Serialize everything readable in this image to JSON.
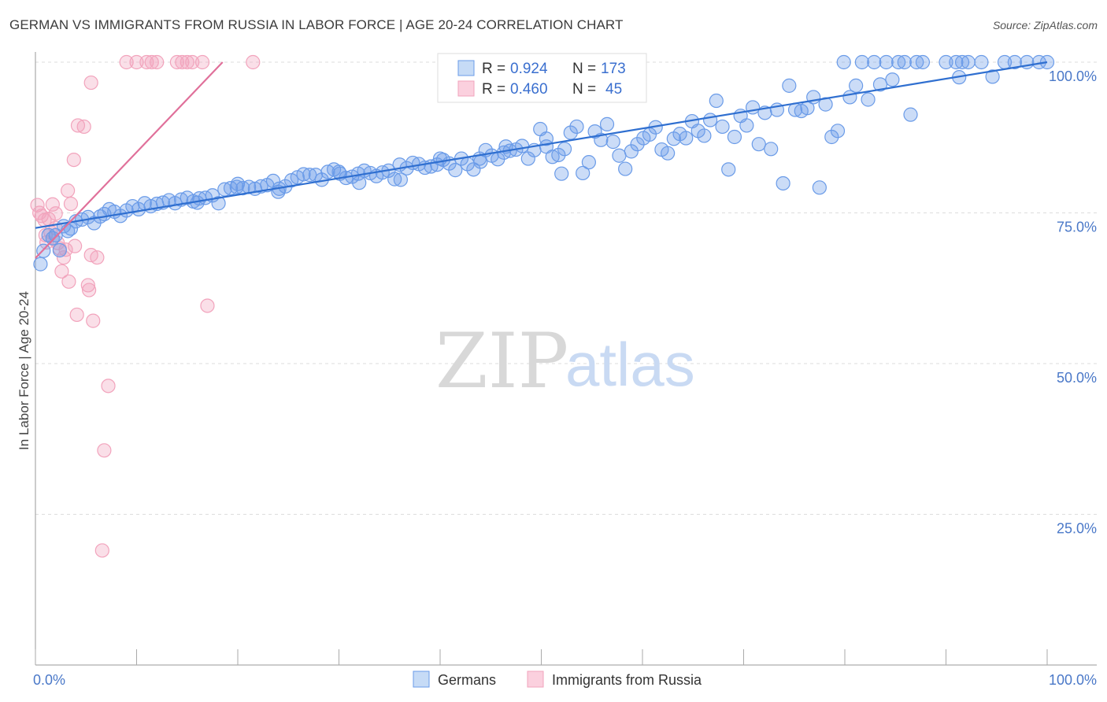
{
  "title": "GERMAN VS IMMIGRANTS FROM RUSSIA IN LABOR FORCE | AGE 20-24 CORRELATION CHART",
  "source": "Source: ZipAtlas.com",
  "watermark": {
    "zip": "ZIP",
    "atlas": "atlas"
  },
  "legend": {
    "germans": {
      "r_label": "R =",
      "r_value": "0.924",
      "n_label": "N =",
      "n_value": "173"
    },
    "russia": {
      "r_label": "R =",
      "r_value": "0.460",
      "n_label": "N =",
      "n_value": "45"
    }
  },
  "bottom_legend": {
    "germans": "Germans",
    "russia": "Immigrants from Russia"
  },
  "colors": {
    "germans": "#6a9be8",
    "germans_line": "#2f6fd0",
    "russia": "#f2a3bc",
    "russia_line": "#e0709a",
    "grid": "#dddddd"
  },
  "chart_data": {
    "type": "scatter",
    "title": "GERMAN VS IMMIGRANTS FROM RUSSIA IN LABOR FORCE | AGE 20-24 CORRELATION CHART",
    "xlabel": "",
    "ylabel": "In Labor Force | Age 20-24",
    "xlim": [
      0,
      100
    ],
    "ylim": [
      0,
      100
    ],
    "x_tick_labels": [
      "0.0%",
      "100.0%"
    ],
    "y_tick_labels": [
      "100.0%",
      "75.0%",
      "50.0%",
      "25.0%"
    ],
    "y_ticks": [
      100,
      75,
      50,
      25
    ],
    "series": [
      {
        "name": "Germans",
        "trend": {
          "x": [
            0,
            100
          ],
          "y": [
            72.5,
            100
          ]
        },
        "points": [
          [
            0.5,
            66.5
          ],
          [
            0.8,
            68.7
          ],
          [
            1.3,
            71.3
          ],
          [
            1.7,
            70.8
          ],
          [
            2.0,
            71.3
          ],
          [
            2.4,
            68.8
          ],
          [
            2.8,
            72.8
          ],
          [
            3.2,
            72.0
          ],
          [
            3.5,
            72.4
          ],
          [
            4.0,
            73.6
          ],
          [
            4.6,
            73.9
          ],
          [
            5.2,
            74.3
          ],
          [
            5.8,
            73.3
          ],
          [
            6.4,
            74.4
          ],
          [
            6.8,
            74.8
          ],
          [
            7.3,
            75.6
          ],
          [
            7.8,
            75.2
          ],
          [
            8.4,
            74.5
          ],
          [
            9.0,
            75.4
          ],
          [
            9.6,
            76.1
          ],
          [
            10.2,
            75.6
          ],
          [
            10.8,
            76.6
          ],
          [
            11.4,
            76.1
          ],
          [
            12.0,
            76.5
          ],
          [
            12.6,
            76.7
          ],
          [
            13.2,
            77.1
          ],
          [
            13.8,
            76.6
          ],
          [
            14.4,
            77.2
          ],
          [
            15.0,
            77.5
          ],
          [
            15.6,
            76.9
          ],
          [
            16.2,
            77.4
          ],
          [
            16.8,
            77.5
          ],
          [
            17.5,
            77.9
          ],
          [
            18.1,
            76.6
          ],
          [
            18.7,
            78.9
          ],
          [
            19.3,
            79.1
          ],
          [
            19.9,
            79.3
          ],
          [
            20.5,
            79.1
          ],
          [
            21.1,
            79.3
          ],
          [
            21.7,
            79.0
          ],
          [
            22.3,
            79.4
          ],
          [
            22.9,
            79.6
          ],
          [
            23.5,
            80.3
          ],
          [
            24.1,
            79.0
          ],
          [
            24.7,
            79.4
          ],
          [
            25.3,
            80.4
          ],
          [
            25.9,
            80.9
          ],
          [
            26.5,
            81.4
          ],
          [
            27.1,
            81.3
          ],
          [
            27.7,
            81.3
          ],
          [
            28.3,
            80.5
          ],
          [
            28.9,
            81.8
          ],
          [
            29.5,
            82.2
          ],
          [
            30.1,
            81.5
          ],
          [
            30.7,
            80.8
          ],
          [
            31.3,
            81.0
          ],
          [
            31.9,
            81.5
          ],
          [
            32.5,
            82.0
          ],
          [
            33.1,
            81.6
          ],
          [
            33.7,
            81.1
          ],
          [
            34.3,
            81.7
          ],
          [
            34.9,
            82.0
          ],
          [
            35.5,
            80.6
          ],
          [
            36.1,
            80.5
          ],
          [
            36.7,
            82.4
          ],
          [
            37.3,
            83.3
          ],
          [
            37.9,
            83.1
          ],
          [
            38.5,
            82.5
          ],
          [
            39.1,
            82.7
          ],
          [
            39.7,
            83.0
          ],
          [
            40.3,
            83.8
          ],
          [
            40.9,
            83.2
          ],
          [
            41.5,
            82.1
          ],
          [
            42.1,
            84.0
          ],
          [
            42.7,
            83.1
          ],
          [
            43.3,
            82.2
          ],
          [
            43.9,
            84.0
          ],
          [
            44.5,
            85.4
          ],
          [
            45.1,
            84.5
          ],
          [
            45.7,
            83.9
          ],
          [
            46.3,
            85.0
          ],
          [
            46.9,
            85.3
          ],
          [
            47.5,
            85.5
          ],
          [
            48.1,
            86.1
          ],
          [
            48.7,
            84.0
          ],
          [
            49.3,
            85.4
          ],
          [
            49.9,
            88.9
          ],
          [
            50.5,
            87.3
          ],
          [
            51.1,
            84.3
          ],
          [
            51.7,
            84.6
          ],
          [
            52.3,
            85.6
          ],
          [
            52.9,
            88.3
          ],
          [
            53.5,
            89.3
          ],
          [
            54.1,
            81.6
          ],
          [
            54.7,
            83.4
          ],
          [
            55.3,
            88.5
          ],
          [
            55.9,
            87.1
          ],
          [
            56.5,
            89.7
          ],
          [
            57.1,
            86.8
          ],
          [
            57.7,
            84.5
          ],
          [
            58.3,
            82.3
          ],
          [
            58.9,
            85.2
          ],
          [
            59.5,
            86.4
          ],
          [
            60.1,
            87.4
          ],
          [
            60.7,
            88.0
          ],
          [
            61.3,
            89.2
          ],
          [
            61.9,
            85.5
          ],
          [
            62.5,
            84.9
          ],
          [
            63.1,
            87.3
          ],
          [
            63.7,
            88.1
          ],
          [
            64.3,
            87.4
          ],
          [
            64.9,
            90.2
          ],
          [
            65.5,
            88.6
          ],
          [
            66.1,
            87.8
          ],
          [
            66.7,
            90.4
          ],
          [
            67.3,
            93.6
          ],
          [
            67.9,
            89.3
          ],
          [
            68.5,
            82.2
          ],
          [
            69.1,
            87.6
          ],
          [
            69.7,
            91.1
          ],
          [
            70.3,
            89.5
          ],
          [
            70.9,
            92.5
          ],
          [
            71.5,
            86.4
          ],
          [
            72.1,
            91.6
          ],
          [
            72.7,
            85.6
          ],
          [
            73.3,
            92.1
          ],
          [
            73.9,
            79.9
          ],
          [
            74.5,
            96.1
          ],
          [
            75.1,
            92.1
          ],
          [
            75.7,
            91.9
          ],
          [
            76.3,
            92.4
          ],
          [
            76.9,
            94.2
          ],
          [
            77.5,
            79.2
          ],
          [
            78.1,
            93.0
          ],
          [
            78.7,
            87.6
          ],
          [
            79.3,
            88.6
          ],
          [
            79.9,
            100
          ],
          [
            80.5,
            94.2
          ],
          [
            81.1,
            96.1
          ],
          [
            81.7,
            100
          ],
          [
            82.3,
            93.8
          ],
          [
            82.9,
            100
          ],
          [
            83.5,
            96.3
          ],
          [
            84.1,
            100
          ],
          [
            84.7,
            97.1
          ],
          [
            85.3,
            100
          ],
          [
            85.9,
            100
          ],
          [
            86.5,
            91.3
          ],
          [
            87.1,
            100
          ],
          [
            87.7,
            100
          ],
          [
            90.0,
            100
          ],
          [
            91.0,
            100
          ],
          [
            91.6,
            100
          ],
          [
            91.3,
            97.5
          ],
          [
            92.2,
            100
          ],
          [
            93.5,
            100
          ],
          [
            94.6,
            97.6
          ],
          [
            95.8,
            100
          ],
          [
            96.8,
            100
          ],
          [
            98.0,
            100
          ],
          [
            99.2,
            100
          ],
          [
            100.0,
            100
          ],
          [
            50.5,
            86.0
          ],
          [
            52.0,
            81.5
          ],
          [
            36.0,
            83.0
          ],
          [
            40.0,
            84.0
          ],
          [
            44.0,
            83.5
          ],
          [
            46.5,
            86.0
          ],
          [
            30.0,
            81.8
          ],
          [
            32.0,
            80.0
          ],
          [
            24.0,
            78.5
          ],
          [
            20.0,
            79.8
          ],
          [
            16.0,
            76.7
          ]
        ]
      },
      {
        "name": "Immigrants from Russia",
        "trend": {
          "x": [
            0,
            18.5
          ],
          "y": [
            67.5,
            100
          ]
        },
        "points": [
          [
            0.2,
            76.3
          ],
          [
            0.4,
            75.0
          ],
          [
            0.6,
            74.5
          ],
          [
            0.9,
            73.8
          ],
          [
            1.1,
            70.1
          ],
          [
            1.3,
            74.0
          ],
          [
            1.5,
            71.8
          ],
          [
            1.7,
            76.4
          ],
          [
            2.0,
            72.5
          ],
          [
            2.2,
            70.0
          ],
          [
            2.4,
            69.1
          ],
          [
            2.6,
            65.3
          ],
          [
            2.8,
            67.6
          ],
          [
            3.0,
            68.9
          ],
          [
            3.2,
            78.7
          ],
          [
            3.5,
            76.5
          ],
          [
            3.8,
            83.8
          ],
          [
            3.9,
            69.5
          ],
          [
            4.2,
            89.5
          ],
          [
            4.8,
            89.3
          ],
          [
            5.2,
            63.0
          ],
          [
            5.3,
            62.2
          ],
          [
            5.5,
            96.6
          ],
          [
            5.7,
            57.1
          ],
          [
            6.1,
            67.6
          ],
          [
            7.2,
            46.3
          ],
          [
            6.8,
            35.6
          ],
          [
            6.6,
            19.0
          ],
          [
            9.0,
            100
          ],
          [
            10.0,
            100
          ],
          [
            11.0,
            100
          ],
          [
            11.5,
            100
          ],
          [
            12.0,
            100
          ],
          [
            14.0,
            100
          ],
          [
            14.5,
            100
          ],
          [
            15.0,
            100
          ],
          [
            15.5,
            100
          ],
          [
            16.5,
            100
          ],
          [
            17.0,
            59.6
          ],
          [
            21.5,
            100
          ],
          [
            1.0,
            71.3
          ],
          [
            2.0,
            74.9
          ],
          [
            4.1,
            58.1
          ],
          [
            3.3,
            63.6
          ],
          [
            5.5,
            68.0
          ]
        ]
      }
    ]
  }
}
